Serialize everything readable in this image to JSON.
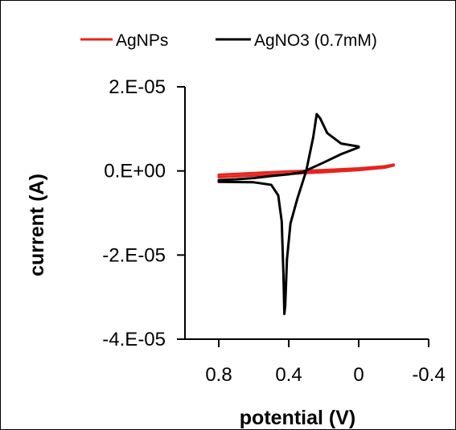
{
  "chart_data": {
    "type": "line",
    "xlabel": "potential (V)",
    "ylabel": "current (A)",
    "xlim": [
      0.8,
      -0.4
    ],
    "ylim": [
      -4e-05,
      2e-05
    ],
    "x_reversed": true,
    "x_ticks": [
      0.8,
      0.4,
      0,
      -0.4
    ],
    "x_tick_labels": [
      "0.8",
      "0.4",
      "0",
      "-0.4"
    ],
    "y_ticks": [
      2e-05,
      0,
      -2e-05,
      -4e-05
    ],
    "y_tick_labels": [
      "2.E-05",
      "0.E+00",
      "-2.E-05",
      "-4.E-05"
    ],
    "grid": false,
    "legend_position": "top",
    "series": [
      {
        "name": "AgNPs",
        "color": "#e8231e",
        "x": [
          0.8,
          0.6,
          0.4,
          0.2,
          0.0,
          -0.15,
          -0.2,
          -0.2,
          -0.15,
          0.0,
          0.2,
          0.4,
          0.6,
          0.8
        ],
        "y": [
          -9e-07,
          -5e-07,
          -1e-07,
          2e-07,
          6e-07,
          1.1e-06,
          1.5e-06,
          1.3e-06,
          8e-07,
          2e-07,
          -3e-07,
          -7e-07,
          -1.1e-06,
          -1.5e-06
        ]
      },
      {
        "name": "AgNO3 (0.7mM)",
        "color": "#000000",
        "x": [
          0.8,
          0.6,
          0.5,
          0.46,
          0.44,
          0.43,
          0.425,
          0.42,
          0.41,
          0.39,
          0.35,
          0.3,
          0.26,
          0.24,
          0.22,
          0.18,
          0.1,
          0.0,
          0.0,
          0.1,
          0.2,
          0.3,
          0.32,
          0.4,
          0.5,
          0.6,
          0.7,
          0.8
        ],
        "y": [
          -2.6e-06,
          -2.7e-06,
          -3.3e-06,
          -5.8e-06,
          -1.2e-05,
          -2.5e-05,
          -3.4e-05,
          -3.2e-05,
          -2.1e-05,
          -1.25e-05,
          -6.5e-06,
          0.0,
          8e-06,
          1.35e-05,
          1.25e-05,
          9e-06,
          6.5e-06,
          5.8e-06,
          5.6e-06,
          4e-06,
          2e-06,
          1e-07,
          -3e-07,
          -8e-07,
          -1.2e-06,
          -1.7e-06,
          -2e-06,
          -2.2e-06
        ]
      }
    ]
  }
}
